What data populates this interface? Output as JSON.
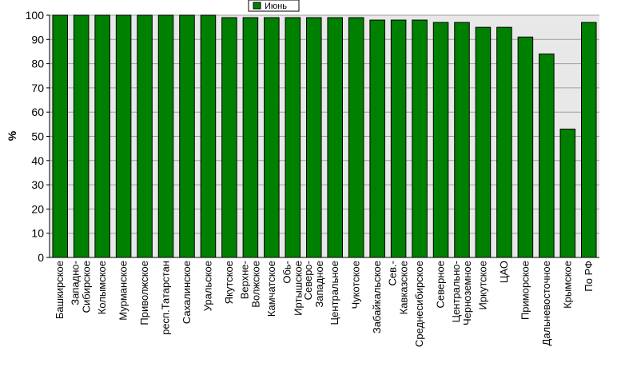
{
  "chart_data": {
    "type": "bar",
    "title": "",
    "xlabel": "",
    "ylabel": "%",
    "ylim": [
      0,
      100
    ],
    "yticks": [
      0,
      10,
      20,
      30,
      40,
      50,
      60,
      70,
      80,
      90,
      100
    ],
    "grid": true,
    "legend_position": "top-center",
    "categories": [
      "Башкирское",
      "Западно-Сибирское",
      "Колымское",
      "Мурманское",
      "Приволжское",
      "респ.Татарстан",
      "Сахалинское",
      "Уральское",
      "Якутское",
      "Верхне-Волжское",
      "Камчатское",
      "Обь-Иртышское",
      "Северо-Западное",
      "Центральное",
      "Чукотское",
      "Забайкальское",
      "Сев.-Кавказское",
      "Среднесибирское",
      "Северное",
      "Центрально-Черноземное",
      "Иркутское",
      "ЦАО",
      "Приморское",
      "Дальневосточное",
      "Крымское",
      "По РФ"
    ],
    "category_lines": [
      [
        "Башкирское"
      ],
      [
        "Западно-",
        "Сибирское"
      ],
      [
        "Колымское"
      ],
      [
        "Мурманское"
      ],
      [
        "Приволжское"
      ],
      [
        "респ.Татарстан"
      ],
      [
        "Сахалинское"
      ],
      [
        "Уральское"
      ],
      [
        "Якутское"
      ],
      [
        "Верхне-",
        "Волжское"
      ],
      [
        "Камчатское"
      ],
      [
        "Обь-",
        "Иртышское"
      ],
      [
        "Северо-",
        "Западное"
      ],
      [
        "Центральное"
      ],
      [
        "Чукотское"
      ],
      [
        "Забайкальское"
      ],
      [
        "Сев.-",
        "Кавказское"
      ],
      [
        "Среднесибирское"
      ],
      [
        "Северное"
      ],
      [
        "Центрально-",
        "Черноземное"
      ],
      [
        "Иркутское"
      ],
      [
        "ЦАО"
      ],
      [
        "Приморское"
      ],
      [
        "Дальневосточное"
      ],
      [
        "Крымское"
      ],
      [
        "По РФ"
      ]
    ],
    "series": [
      {
        "name": "Июнь",
        "color": "#008000",
        "values": [
          100,
          100,
          100,
          100,
          100,
          100,
          100,
          100,
          99,
          99,
          99,
          99,
          99,
          99,
          99,
          98,
          98,
          98,
          97,
          97,
          95,
          95,
          91,
          84,
          53,
          97
        ]
      }
    ]
  }
}
